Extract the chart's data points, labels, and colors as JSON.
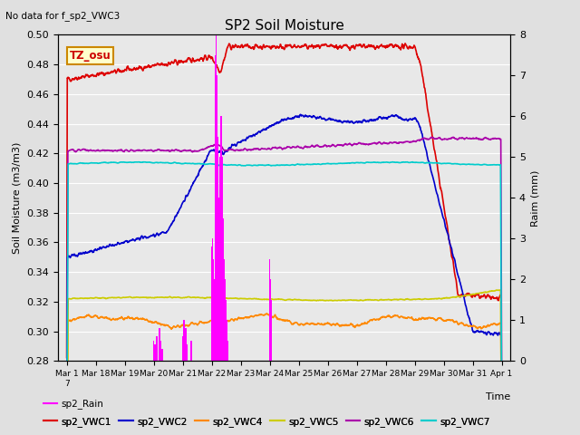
{
  "title": "SP2 Soil Moisture",
  "no_data_text": "No data for f_sp2_VWC3",
  "ylabel_left": "Soil Moisture (m3/m3)",
  "ylabel_right": "Raim (mm)",
  "xlabel": "Time",
  "ylim_left": [
    0.28,
    0.5
  ],
  "ylim_right": [
    0.0,
    8.0
  ],
  "yticks_left": [
    0.28,
    0.3,
    0.32,
    0.34,
    0.36,
    0.38,
    0.4,
    0.42,
    0.44,
    0.46,
    0.48,
    0.5
  ],
  "yticks_right": [
    0.0,
    1.0,
    2.0,
    3.0,
    4.0,
    5.0,
    6.0,
    7.0,
    8.0
  ],
  "tz_label": "TZ_osu",
  "fig_bg": "#e0e0e0",
  "plot_bg": "#e8e8e8",
  "grid_color": "#ffffff",
  "colors": {
    "vwc1": "#dd0000",
    "vwc2": "#0000cc",
    "vwc4": "#ff8800",
    "vwc5": "#cccc00",
    "vwc6": "#aa00aa",
    "vwc7": "#00cccc",
    "rain": "#ff00ff"
  },
  "xtick_labels": [
    "Mar 1\n7",
    "Mar 18",
    "Mar 19",
    "Mar 20",
    "Mar 21",
    "Mar 22",
    "Mar 23",
    "Mar 24",
    "Mar 25",
    "Mar 26",
    "Mar 27",
    "Mar 28",
    "Mar 29",
    "Mar 30",
    "Mar 31",
    "Apr 1"
  ],
  "n_points": 1500,
  "legend_entries": [
    {
      "label": "sp2_VWC1",
      "color": "#dd0000"
    },
    {
      "label": "sp2_VWC2",
      "color": "#0000cc"
    },
    {
      "label": "sp2_VWC4",
      "color": "#ff8800"
    },
    {
      "label": "sp2_VWC5",
      "color": "#cccc00"
    },
    {
      "label": "sp2_VWC6",
      "color": "#aa00aa"
    },
    {
      "label": "sp2_VWC7",
      "color": "#00cccc"
    },
    {
      "label": "sp2_Rain",
      "color": "#ff00ff"
    }
  ]
}
